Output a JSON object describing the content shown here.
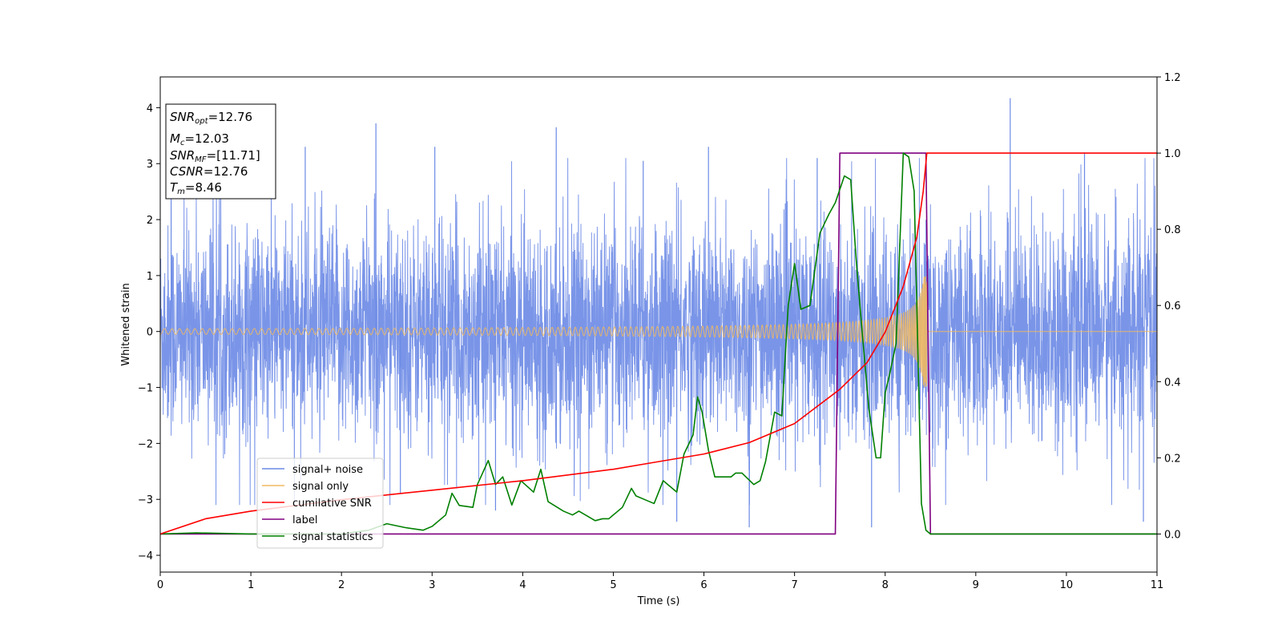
{
  "chart_data": {
    "type": "line",
    "xlabel": "Time (s)",
    "ylabel": "Whitened strain",
    "xlim": [
      0,
      11
    ],
    "ylim": [
      -4.3,
      4.55
    ],
    "y2lim": [
      -0.1,
      1.2
    ],
    "xticks": [
      0,
      1,
      2,
      3,
      4,
      5,
      6,
      7,
      8,
      9,
      10,
      11
    ],
    "yticks": [
      -4,
      -3,
      -2,
      -1,
      0,
      1,
      2,
      3,
      4
    ],
    "y2ticks": [
      "0.0",
      "0.2",
      "0.4",
      "0.6",
      "0.8",
      "1.0",
      "1.2"
    ],
    "y2tick_values": [
      0.0,
      0.2,
      0.4,
      0.6,
      0.8,
      1.0,
      1.2
    ],
    "grid": false,
    "legend_position": "lower-left",
    "series": [
      {
        "name": "signal+ noise",
        "color": "#6b8ae6",
        "axis": "left",
        "noise_amplitude": 1.3,
        "tall_spikes": [
          [
            0.12,
            2.5
          ],
          [
            1.6,
            3.3
          ],
          [
            2.38,
            3.72
          ],
          [
            3.03,
            3.3
          ],
          [
            4.37,
            3.65
          ],
          [
            5.33,
            3.05
          ],
          [
            6.05,
            3.3
          ],
          [
            7.25,
            3.1
          ],
          [
            9.38,
            4.17
          ],
          [
            10.2,
            3.2
          ],
          [
            2.65,
            -2.9
          ],
          [
            3.7,
            -3.2
          ],
          [
            5.7,
            -3.4
          ],
          [
            6.5,
            -3.5
          ],
          [
            7.85,
            -3.5
          ],
          [
            10.85,
            -3.4
          ]
        ]
      },
      {
        "name": "signal only",
        "color": "#f0b860",
        "axis": "left",
        "chirp": {
          "start_time": 0,
          "merger_time": 8.46,
          "amplitude_start": 0.05,
          "amplitude_peak": 1.0
        }
      },
      {
        "name": "cumilative SNR",
        "color": "#ff0000",
        "axis": "right",
        "x": [
          0,
          0.5,
          1,
          2,
          3,
          4,
          5,
          5.5,
          6,
          6.5,
          7,
          7.5,
          7.8,
          8.0,
          8.2,
          8.35,
          8.42,
          8.46,
          11
        ],
        "y": [
          0.0,
          0.04,
          0.06,
          0.09,
          0.115,
          0.14,
          0.17,
          0.19,
          0.21,
          0.24,
          0.29,
          0.38,
          0.45,
          0.53,
          0.65,
          0.78,
          0.9,
          1.0,
          1.0
        ]
      },
      {
        "name": "label",
        "color": "#800080",
        "axis": "right",
        "x": [
          0,
          7.45,
          7.5,
          8.45,
          8.5,
          11
        ],
        "y": [
          0.0,
          0.0,
          1.0,
          1.0,
          0.0,
          0.0
        ]
      },
      {
        "name": "signal statistics",
        "color": "#008000",
        "axis": "right",
        "x": [
          0,
          0.4,
          1,
          2,
          2.3,
          2.5,
          2.7,
          2.9,
          3.0,
          3.15,
          3.22,
          3.3,
          3.45,
          3.5,
          3.62,
          3.7,
          3.78,
          3.88,
          3.98,
          4.12,
          4.2,
          4.28,
          4.45,
          4.55,
          4.62,
          4.8,
          4.88,
          4.95,
          5.05,
          5.1,
          5.2,
          5.25,
          5.35,
          5.45,
          5.55,
          5.7,
          5.78,
          5.88,
          5.93,
          5.98,
          6.05,
          6.12,
          6.18,
          6.3,
          6.35,
          6.42,
          6.55,
          6.62,
          6.68,
          6.78,
          6.86,
          6.93,
          7.0,
          7.07,
          7.17,
          7.28,
          7.38,
          7.45,
          7.55,
          7.62,
          7.68,
          7.75,
          7.82,
          7.9,
          7.95,
          8.0,
          8.05,
          8.12,
          8.2,
          8.26,
          8.32,
          8.4,
          8.45,
          8.5,
          11
        ],
        "y": [
          0.0,
          0.003,
          0.0,
          0.0,
          0.01,
          0.027,
          0.017,
          0.01,
          0.02,
          0.05,
          0.107,
          0.075,
          0.07,
          0.13,
          0.193,
          0.13,
          0.15,
          0.076,
          0.14,
          0.11,
          0.17,
          0.085,
          0.06,
          0.05,
          0.06,
          0.035,
          0.04,
          0.04,
          0.06,
          0.07,
          0.12,
          0.1,
          0.09,
          0.08,
          0.14,
          0.11,
          0.21,
          0.26,
          0.36,
          0.32,
          0.22,
          0.15,
          0.15,
          0.15,
          0.16,
          0.16,
          0.13,
          0.14,
          0.19,
          0.32,
          0.31,
          0.6,
          0.71,
          0.59,
          0.6,
          0.79,
          0.84,
          0.87,
          0.94,
          0.93,
          0.72,
          0.52,
          0.33,
          0.2,
          0.2,
          0.37,
          0.42,
          0.5,
          1.0,
          0.99,
          0.9,
          0.08,
          0.01,
          0.0,
          0.0
        ]
      }
    ]
  },
  "info_box": {
    "lines": [
      {
        "main": "SNR",
        "sub": "opt",
        "value": "=12.76"
      },
      {
        "main": "M",
        "sub": "c",
        "value": "=12.03"
      },
      {
        "main": "SNR",
        "sub": "MF",
        "value": "=[11.71]"
      },
      {
        "main": "CSNR",
        "sub": "",
        "value": "=12.76"
      },
      {
        "main": "T",
        "sub": "m",
        "value": "=8.46"
      }
    ]
  }
}
